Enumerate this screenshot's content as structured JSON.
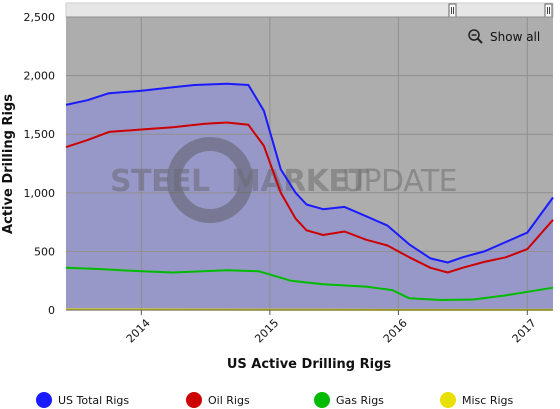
{
  "chart_data": {
    "type": "line",
    "title": "",
    "xlabel": "US Active Drilling Rigs",
    "ylabel": "Active Drilling Rigs",
    "ylim": [
      0,
      2500
    ],
    "yticks": [
      "0",
      "500",
      "1,000",
      "1,500",
      "2,000",
      "2,500"
    ],
    "xrange": [
      "2013-06-01",
      "2017-03-15"
    ],
    "xticks": [
      {
        "date": "2014-01-01",
        "label": "2014"
      },
      {
        "date": "2015-01-01",
        "label": "2015"
      },
      {
        "date": "2016-01-01",
        "label": "2016"
      },
      {
        "date": "2017-01-01",
        "label": "2017"
      }
    ],
    "grid": true,
    "legend_position": "bottom",
    "series": [
      {
        "name": "US Total Rigs",
        "color": "#1a1aff",
        "fill": true,
        "points": [
          [
            "2013-06-01",
            1750
          ],
          [
            "2013-08-01",
            1790
          ],
          [
            "2013-10-01",
            1850
          ],
          [
            "2014-01-01",
            1870
          ],
          [
            "2014-04-01",
            1900
          ],
          [
            "2014-06-01",
            1920
          ],
          [
            "2014-09-01",
            1930
          ],
          [
            "2014-11-01",
            1920
          ],
          [
            "2014-12-15",
            1700
          ],
          [
            "2015-02-01",
            1200
          ],
          [
            "2015-03-15",
            1000
          ],
          [
            "2015-04-15",
            900
          ],
          [
            "2015-06-01",
            860
          ],
          [
            "2015-08-01",
            880
          ],
          [
            "2015-10-01",
            800
          ],
          [
            "2015-12-01",
            720
          ],
          [
            "2016-02-01",
            560
          ],
          [
            "2016-04-01",
            440
          ],
          [
            "2016-05-20",
            405
          ],
          [
            "2016-07-01",
            450
          ],
          [
            "2016-09-01",
            500
          ],
          [
            "2016-11-01",
            580
          ],
          [
            "2017-01-01",
            660
          ],
          [
            "2017-03-15",
            960
          ]
        ]
      },
      {
        "name": "Oil Rigs",
        "color": "#cc0000",
        "fill": false,
        "points": [
          [
            "2013-06-01",
            1390
          ],
          [
            "2013-08-01",
            1450
          ],
          [
            "2013-10-01",
            1520
          ],
          [
            "2014-01-01",
            1540
          ],
          [
            "2014-04-01",
            1560
          ],
          [
            "2014-07-01",
            1590
          ],
          [
            "2014-09-01",
            1600
          ],
          [
            "2014-11-01",
            1580
          ],
          [
            "2014-12-15",
            1400
          ],
          [
            "2015-02-01",
            1000
          ],
          [
            "2015-03-15",
            780
          ],
          [
            "2015-04-15",
            680
          ],
          [
            "2015-06-01",
            640
          ],
          [
            "2015-08-01",
            670
          ],
          [
            "2015-10-01",
            600
          ],
          [
            "2015-12-01",
            550
          ],
          [
            "2016-02-01",
            450
          ],
          [
            "2016-04-01",
            360
          ],
          [
            "2016-05-20",
            320
          ],
          [
            "2016-07-01",
            360
          ],
          [
            "2016-09-01",
            410
          ],
          [
            "2016-11-01",
            450
          ],
          [
            "2017-01-01",
            520
          ],
          [
            "2017-03-15",
            770
          ]
        ]
      },
      {
        "name": "Gas Rigs",
        "color": "#00bb00",
        "fill": false,
        "points": [
          [
            "2013-06-01",
            360
          ],
          [
            "2013-09-01",
            350
          ],
          [
            "2014-01-01",
            330
          ],
          [
            "2014-04-01",
            320
          ],
          [
            "2014-09-01",
            340
          ],
          [
            "2014-12-01",
            330
          ],
          [
            "2015-03-01",
            250
          ],
          [
            "2015-06-01",
            220
          ],
          [
            "2015-10-01",
            200
          ],
          [
            "2015-12-15",
            170
          ],
          [
            "2016-02-01",
            100
          ],
          [
            "2016-05-01",
            85
          ],
          [
            "2016-08-01",
            90
          ],
          [
            "2016-11-01",
            125
          ],
          [
            "2017-03-15",
            190
          ]
        ]
      },
      {
        "name": "Misc Rigs",
        "color": "#e8e000",
        "fill": false,
        "points": [
          [
            "2013-06-01",
            4
          ],
          [
            "2014-06-01",
            3
          ],
          [
            "2015-06-01",
            2
          ],
          [
            "2016-06-01",
            1
          ],
          [
            "2017-03-15",
            1
          ]
        ]
      }
    ]
  },
  "ui": {
    "show_all_label": "Show all",
    "watermark": {
      "left": "STEEL",
      "middle": "MARKET",
      "right": "UPDATE"
    }
  },
  "colors": {
    "plot_background": "#adadad",
    "area_fill": "#9898c8",
    "navigator_background": "#e6e6e6"
  }
}
